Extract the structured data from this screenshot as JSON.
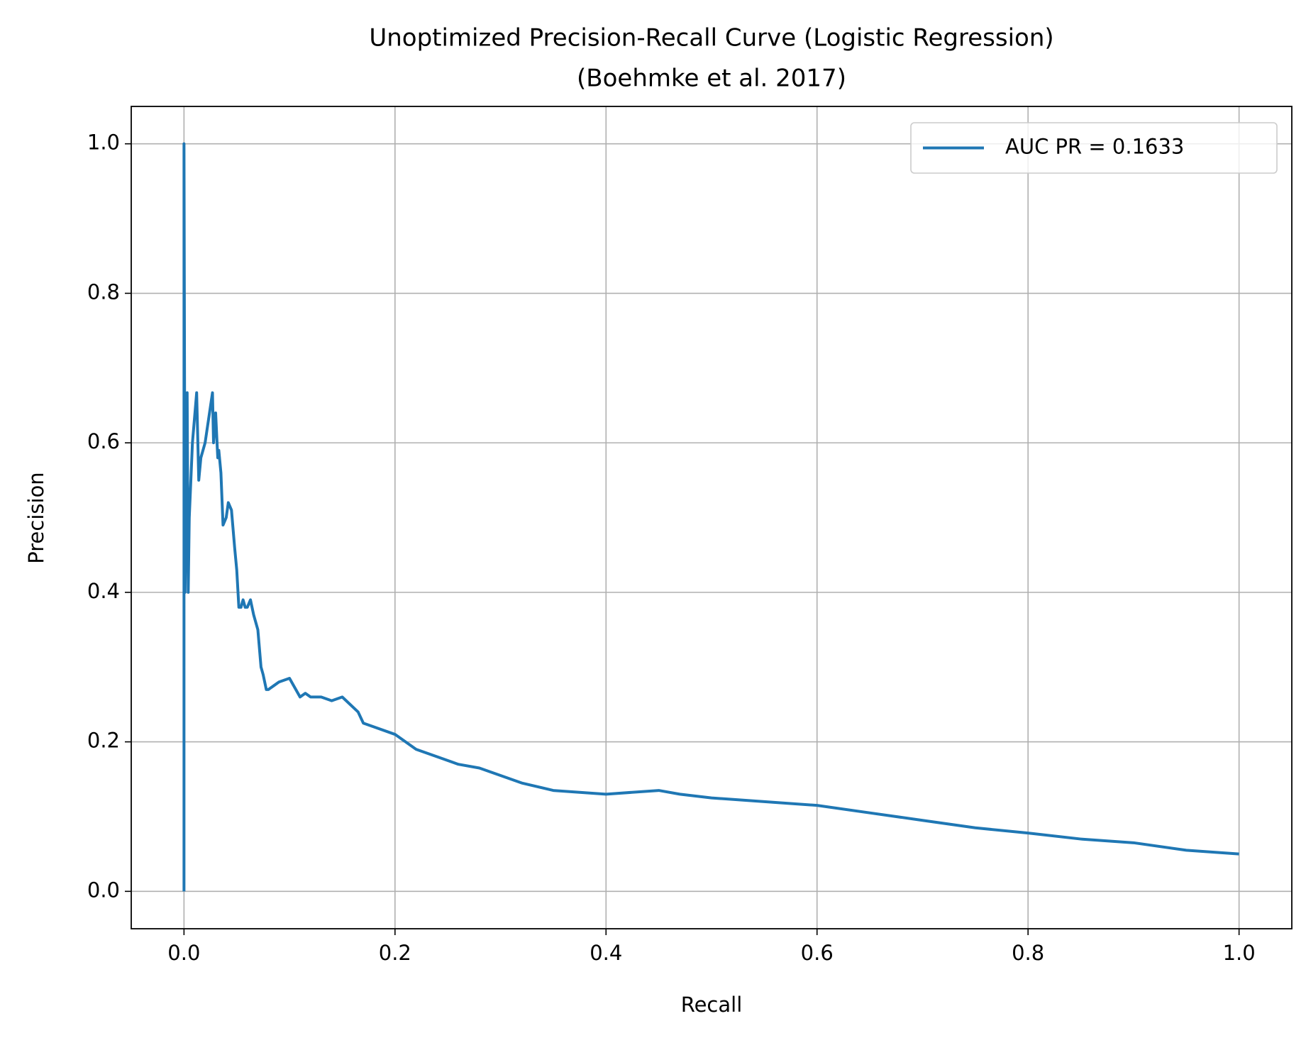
{
  "chart_data": {
    "type": "line",
    "title": [
      "Unoptimized Precision-Recall Curve (Logistic Regression)",
      "(Boehmke et al. 2017)"
    ],
    "x_label": "Recall",
    "y_label": "Precision",
    "x": [
      0,
      0,
      0.001,
      0.003,
      0.004,
      0.005,
      0.008,
      0.012,
      0.014,
      0.016,
      0.02,
      0.027,
      0.028,
      0.03,
      0.032,
      0.033,
      0.035,
      0.037,
      0.04,
      0.042,
      0.045,
      0.048,
      0.05,
      0.052,
      0.054,
      0.056,
      0.058,
      0.06,
      0.063,
      0.066,
      0.07,
      0.073,
      0.075,
      0.078,
      0.08,
      0.085,
      0.09,
      0.1,
      0.11,
      0.115,
      0.12,
      0.13,
      0.14,
      0.15,
      0.165,
      0.17,
      0.18,
      0.2,
      0.22,
      0.24,
      0.26,
      0.28,
      0.3,
      0.32,
      0.35,
      0.4,
      0.45,
      0.47,
      0.5,
      0.55,
      0.6,
      0.65,
      0.7,
      0.75,
      0.8,
      0.85,
      0.9,
      0.95,
      1.0
    ],
    "series": [
      {
        "name": "AUC PR = 0.1633",
        "color": "#1f77b4",
        "values": [
          0,
          1,
          0.4,
          0.667,
          0.4,
          0.5,
          0.6,
          0.667,
          0.55,
          0.58,
          0.6,
          0.667,
          0.6,
          0.64,
          0.58,
          0.59,
          0.56,
          0.49,
          0.5,
          0.52,
          0.51,
          0.46,
          0.43,
          0.38,
          0.38,
          0.39,
          0.38,
          0.38,
          0.39,
          0.37,
          0.35,
          0.3,
          0.29,
          0.27,
          0.27,
          0.275,
          0.28,
          0.285,
          0.26,
          0.265,
          0.26,
          0.26,
          0.255,
          0.26,
          0.24,
          0.225,
          0.22,
          0.21,
          0.19,
          0.18,
          0.17,
          0.165,
          0.155,
          0.145,
          0.135,
          0.13,
          0.135,
          0.13,
          0.125,
          0.12,
          0.115,
          0.105,
          0.095,
          0.085,
          0.078,
          0.07,
          0.065,
          0.055,
          0.05
        ]
      }
    ],
    "xlim": [
      -0.05,
      1.05
    ],
    "ylim": [
      -0.05,
      1.05
    ],
    "xticks": [
      {
        "value": 0,
        "label": "0.0"
      },
      {
        "value": 0.2,
        "label": "0.2"
      },
      {
        "value": 0.4,
        "label": "0.4"
      },
      {
        "value": 0.6,
        "label": "0.6"
      },
      {
        "value": 0.8,
        "label": "0.8"
      },
      {
        "value": 1,
        "label": "1.0"
      }
    ],
    "yticks": [
      {
        "value": 0,
        "label": "0.0"
      },
      {
        "value": 0.2,
        "label": "0.2"
      },
      {
        "value": 0.4,
        "label": "0.4"
      },
      {
        "value": 0.6,
        "label": "0.6"
      },
      {
        "value": 0.8,
        "label": "0.8"
      },
      {
        "value": 1,
        "label": "1.0"
      }
    ],
    "grid": true,
    "legend": "upper right"
  }
}
